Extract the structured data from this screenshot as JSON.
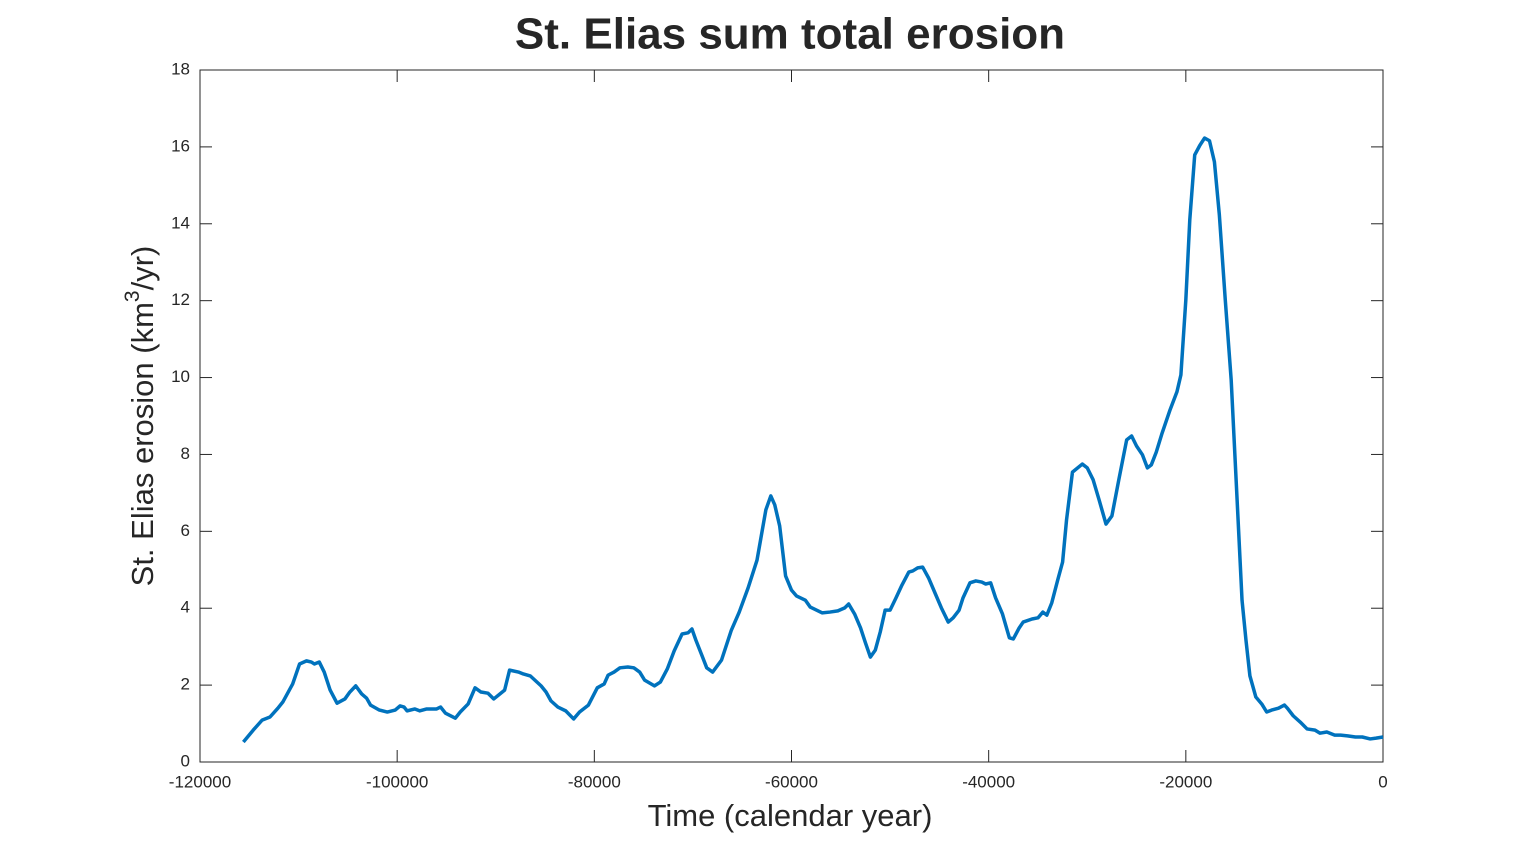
{
  "chart_data": {
    "type": "line",
    "title": "St. Elias sum total erosion",
    "xlabel": "Time (calendar year)",
    "ylabel": [
      "St. Elias erosion (km",
      "3",
      "/yr)"
    ],
    "color": "#0072bd",
    "xlim": [
      -120000,
      0
    ],
    "xticks": [
      -120000,
      -100000,
      -80000,
      -60000,
      -40000,
      -20000,
      0
    ],
    "ylim": [
      0,
      18
    ],
    "yticks": [
      0,
      2,
      4,
      6,
      8,
      10,
      12,
      14,
      16,
      18
    ],
    "grid": false,
    "x": [
      -115600,
      -114600,
      -113700,
      -112900,
      -112100,
      -111600,
      -110600,
      -109900,
      -109200,
      -108700,
      -108400,
      -107900,
      -107400,
      -106800,
      -106100,
      -105300,
      -104800,
      -104200,
      -103600,
      -103100,
      -102700,
      -101800,
      -101000,
      -100200,
      -99700,
      -99300,
      -99000,
      -98200,
      -97700,
      -97000,
      -96000,
      -95600,
      -95100,
      -94100,
      -93600,
      -92800,
      -92100,
      -91500,
      -90800,
      -90200,
      -89100,
      -88600,
      -87700,
      -87200,
      -86500,
      -85400,
      -84900,
      -84400,
      -83700,
      -82900,
      -82100,
      -81500,
      -80600,
      -79700,
      -79000,
      -78600,
      -78000,
      -77400,
      -76600,
      -76000,
      -75400,
      -74900,
      -73900,
      -73300,
      -72600,
      -71900,
      -71100,
      -70500,
      -70100,
      -69700,
      -69100,
      -68600,
      -68000,
      -67100,
      -66100,
      -65300,
      -64400,
      -63500,
      -62600,
      -62100,
      -61700,
      -61200,
      -60600,
      -60000,
      -59500,
      -58600,
      -58100,
      -56900,
      -56100,
      -55300,
      -54600,
      -54200,
      -53600,
      -53000,
      -52500,
      -52000,
      -51500,
      -51000,
      -50500,
      -50000,
      -49400,
      -48800,
      -48100,
      -47700,
      -47200,
      -46700,
      -46100,
      -45400,
      -44800,
      -44100,
      -43600,
      -43000,
      -42600,
      -41900,
      -41300,
      -40700,
      -40300,
      -39800,
      -39300,
      -38600,
      -37900,
      -37500,
      -36900,
      -36500,
      -35600,
      -35000,
      -34500,
      -34100,
      -33600,
      -33000,
      -32500,
      -32100,
      -31500,
      -30500,
      -30000,
      -29400,
      -28800,
      -28100,
      -27500,
      -26800,
      -26000,
      -25500,
      -25000,
      -24400,
      -23900,
      -23500,
      -23000,
      -22400,
      -21600,
      -20900,
      -20500,
      -20000,
      -19600,
      -19100,
      -18600,
      -18100,
      -17600,
      -17100,
      -16600,
      -16000,
      -15400,
      -14800,
      -14300,
      -13900,
      -13500,
      -12900,
      -12300,
      -11800,
      -11300,
      -10600,
      -10000,
      -9700,
      -9100,
      -8400,
      -7700,
      -6900,
      -6400,
      -5700,
      -4900,
      -4300,
      -3600,
      -2800,
      -2100,
      -1300,
      -700,
      0
    ],
    "values": [
      0.52,
      0.83,
      1.09,
      1.17,
      1.4,
      1.56,
      2.03,
      2.55,
      2.63,
      2.6,
      2.55,
      2.6,
      2.34,
      1.87,
      1.53,
      1.64,
      1.82,
      1.98,
      1.77,
      1.66,
      1.48,
      1.35,
      1.3,
      1.35,
      1.46,
      1.43,
      1.33,
      1.38,
      1.33,
      1.38,
      1.38,
      1.43,
      1.27,
      1.14,
      1.3,
      1.51,
      1.93,
      1.82,
      1.79,
      1.64,
      1.87,
      2.39,
      2.34,
      2.29,
      2.24,
      1.98,
      1.82,
      1.59,
      1.43,
      1.33,
      1.12,
      1.3,
      1.48,
      1.93,
      2.03,
      2.26,
      2.34,
      2.45,
      2.47,
      2.45,
      2.34,
      2.13,
      1.98,
      2.08,
      2.42,
      2.89,
      3.33,
      3.36,
      3.46,
      3.17,
      2.78,
      2.45,
      2.34,
      2.65,
      3.43,
      3.9,
      4.53,
      5.25,
      6.56,
      6.92,
      6.69,
      6.14,
      4.84,
      4.47,
      4.32,
      4.21,
      4.03,
      3.88,
      3.9,
      3.93,
      4.01,
      4.11,
      3.85,
      3.49,
      3.1,
      2.73,
      2.91,
      3.38,
      3.95,
      3.95,
      4.27,
      4.6,
      4.94,
      4.97,
      5.05,
      5.07,
      4.79,
      4.37,
      4.01,
      3.64,
      3.75,
      3.95,
      4.27,
      4.66,
      4.71,
      4.68,
      4.63,
      4.66,
      4.27,
      3.85,
      3.23,
      3.2,
      3.49,
      3.64,
      3.72,
      3.75,
      3.9,
      3.82,
      4.14,
      4.73,
      5.2,
      6.3,
      7.54,
      7.75,
      7.65,
      7.34,
      6.82,
      6.19,
      6.4,
      7.34,
      8.38,
      8.48,
      8.22,
      7.99,
      7.65,
      7.73,
      8.06,
      8.56,
      9.16,
      9.63,
      10.07,
      12.02,
      14.1,
      15.79,
      16.03,
      16.23,
      16.16,
      15.61,
      14.23,
      12.02,
      9.94,
      6.82,
      4.21,
      3.17,
      2.24,
      1.69,
      1.51,
      1.3,
      1.35,
      1.4,
      1.48,
      1.4,
      1.2,
      1.04,
      0.86,
      0.83,
      0.75,
      0.78,
      0.7,
      0.7,
      0.68,
      0.65,
      0.65,
      0.6,
      0.62,
      0.65
    ]
  }
}
